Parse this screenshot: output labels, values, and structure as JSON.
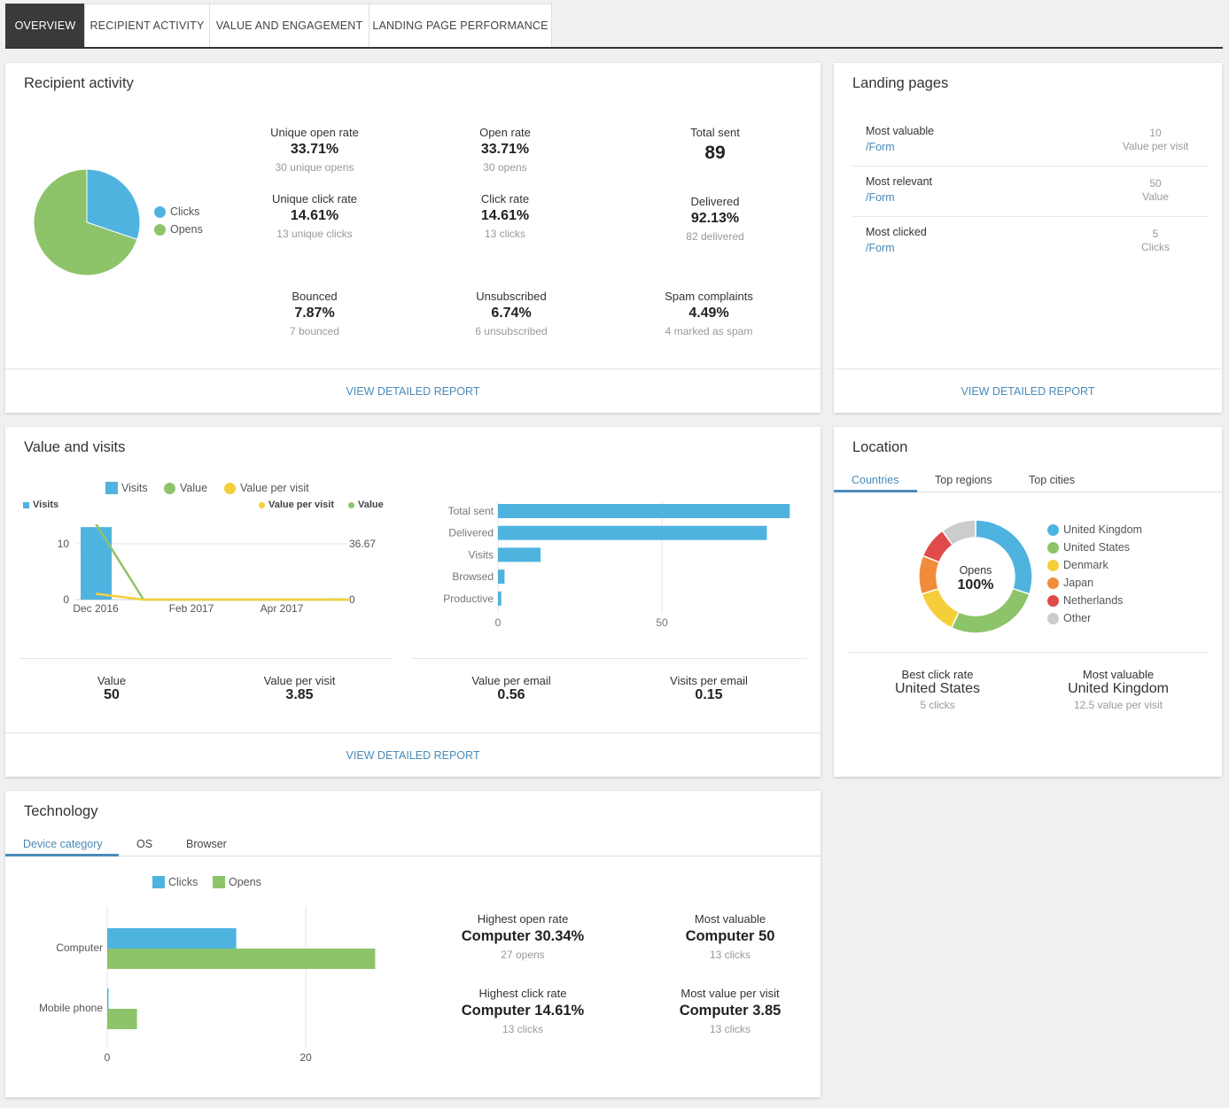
{
  "tabs": [
    {
      "label": "OVERVIEW"
    },
    {
      "label": "RECIPIENT ACTIVITY"
    },
    {
      "label": "VALUE AND ENGAGEMENT"
    },
    {
      "label": "LANDING PAGE PERFORMANCE"
    }
  ],
  "recipient_activity": {
    "title": "Recipient activity",
    "pie": {
      "legend": [
        {
          "label": "Clicks",
          "color": "#4fb3e0",
          "value": 13
        },
        {
          "label": "Opens",
          "color": "#8dc46a",
          "value": 30
        }
      ]
    },
    "stats": {
      "unique_open_rate": {
        "label": "Unique open rate",
        "value": "33.71%",
        "sub": "30 unique opens"
      },
      "open_rate": {
        "label": "Open rate",
        "value": "33.71%",
        "sub": "30 opens"
      },
      "total_sent": {
        "label": "Total sent",
        "value": "89"
      },
      "unique_click_rate": {
        "label": "Unique click rate",
        "value": "14.61%",
        "sub": "13 unique clicks"
      },
      "click_rate": {
        "label": "Click rate",
        "value": "14.61%",
        "sub": "13 clicks"
      },
      "delivered": {
        "label": "Delivered",
        "value": "92.13%",
        "sub": "82 delivered"
      },
      "bounced": {
        "label": "Bounced",
        "value": "7.87%",
        "sub": "7 bounced"
      },
      "unsubscribed": {
        "label": "Unsubscribed",
        "value": "6.74%",
        "sub": "6 unsubscribed"
      },
      "spam": {
        "label": "Spam complaints",
        "value": "4.49%",
        "sub": "4 marked as spam"
      }
    },
    "footer": "VIEW DETAILED REPORT"
  },
  "landing_pages": {
    "title": "Landing pages",
    "rows": [
      {
        "name": "Most valuable",
        "link": "/Form",
        "num": "10",
        "unit": "Value per visit"
      },
      {
        "name": "Most relevant",
        "link": "/Form",
        "num": "50",
        "unit": "Value"
      },
      {
        "name": "Most clicked",
        "link": "/Form",
        "num": "5",
        "unit": "Clicks"
      }
    ],
    "footer": "VIEW DETAILED REPORT"
  },
  "value_visits": {
    "title": "Value and visits",
    "legend_top": {
      "visits": "Visits",
      "value": "Value",
      "value_per_visit": "Value per visit"
    },
    "legend_small": {
      "visits": "Visits",
      "value_per_visit": "Value per visit",
      "value": "Value"
    },
    "colors": {
      "visits": "#4fb3e0",
      "value": "#8dc46a",
      "value_per_visit": "#f5cf3a"
    },
    "kpis": [
      {
        "label": "Value",
        "value": "50"
      },
      {
        "label": "Value per visit",
        "value": "3.85"
      },
      {
        "label": "Value per email",
        "value": "0.56"
      },
      {
        "label": "Visits per email",
        "value": "0.15"
      }
    ],
    "footer": "VIEW DETAILED REPORT"
  },
  "location": {
    "title": "Location",
    "subtabs": [
      "Countries",
      "Top regions",
      "Top cities"
    ],
    "donut_center_label": "Opens",
    "donut_center_value": "100%",
    "legend": [
      {
        "label": "United Kingdom",
        "color": "#4fb3e0"
      },
      {
        "label": "United States",
        "color": "#8dc46a"
      },
      {
        "label": "Denmark",
        "color": "#f5cf3a"
      },
      {
        "label": "Japan",
        "color": "#f08c3a"
      },
      {
        "label": "Netherlands",
        "color": "#e04a4a"
      },
      {
        "label": "Other",
        "color": "#cccccc"
      }
    ],
    "best_click": {
      "label": "Best click rate",
      "value": "United States",
      "sub": "5 clicks"
    },
    "most_valuable": {
      "label": "Most valuable",
      "value": "United Kingdom",
      "sub": "12.5 value per visit"
    }
  },
  "technology": {
    "title": "Technology",
    "subtabs": [
      "Device category",
      "OS",
      "Browser"
    ],
    "legend": {
      "clicks": "Clicks",
      "opens": "Opens"
    },
    "stats": [
      {
        "label": "Highest open rate",
        "value": "Computer 30.34%",
        "sub": "27 opens"
      },
      {
        "label": "Most valuable",
        "value": "Computer 50",
        "sub": "13 clicks"
      },
      {
        "label": "Highest click rate",
        "value": "Computer 14.61%",
        "sub": "13 clicks"
      },
      {
        "label": "Most value per visit",
        "value": "Computer 3.85",
        "sub": "13 clicks"
      }
    ]
  },
  "chart_data": [
    {
      "type": "pie",
      "categories": [
        "Clicks",
        "Opens"
      ],
      "values": [
        13,
        30
      ]
    },
    {
      "type": "bar",
      "categories": [
        "Dec 2016",
        "Feb 2017",
        "Apr 2017"
      ],
      "x_ticks": [
        "Dec 2016",
        "Feb 2017",
        "Apr 2017"
      ],
      "series": [
        {
          "name": "Visits",
          "type": "bar",
          "x": [
            "Dec 2016"
          ],
          "values": [
            13
          ]
        },
        {
          "name": "Value",
          "type": "line",
          "x": [
            "Dec 2016",
            "Jan 2017",
            "Feb 2017",
            "Mar 2017",
            "Apr 2017",
            "May 2017"
          ],
          "values": [
            50,
            0,
            0,
            0,
            0,
            0
          ]
        },
        {
          "name": "Value per visit",
          "type": "line",
          "x": [
            "Dec 2016",
            "Jan 2017",
            "Feb 2017",
            "Mar 2017",
            "Apr 2017",
            "May 2017"
          ],
          "values": [
            3.85,
            0,
            0,
            0,
            0,
            0
          ]
        }
      ],
      "y_left_ticks": [
        0,
        10
      ],
      "y_right_ticks": [
        0,
        36.67
      ],
      "y_left_max": 13.5,
      "y_right_max": 49.5
    },
    {
      "type": "bar",
      "orientation": "horizontal",
      "categories": [
        "Total sent",
        "Delivered",
        "Visits",
        "Browsed",
        "Productive"
      ],
      "values": [
        89,
        82,
        13,
        2,
        1
      ],
      "x_ticks": [
        0,
        50
      ],
      "xlim": [
        0,
        100
      ]
    },
    {
      "type": "donut",
      "categories": [
        "United Kingdom",
        "United States",
        "Denmark",
        "Japan",
        "Netherlands",
        "Other"
      ],
      "values": [
        30,
        27,
        13,
        11,
        9,
        10
      ]
    },
    {
      "type": "bar",
      "orientation": "horizontal",
      "categories": [
        "Computer",
        "Mobile phone"
      ],
      "series": [
        {
          "name": "Clicks",
          "values": [
            13,
            0
          ]
        },
        {
          "name": "Opens",
          "values": [
            27,
            3
          ]
        }
      ],
      "x_ticks": [
        0,
        20
      ],
      "xlim": [
        0,
        30
      ]
    }
  ]
}
